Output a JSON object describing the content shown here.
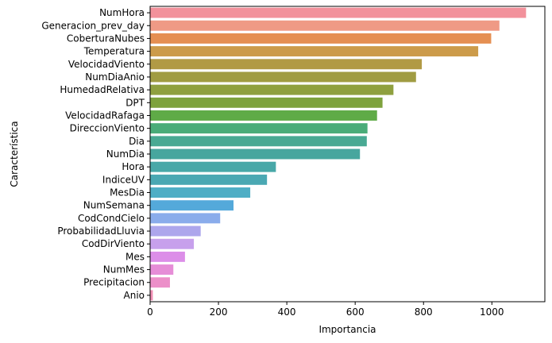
{
  "chart_data": {
    "type": "bar",
    "orientation": "horizontal",
    "xlabel": "Importancia",
    "ylabel": "Característica",
    "xlim": [
      0,
      1155
    ],
    "xticks": [
      0,
      200,
      400,
      600,
      800,
      1000
    ],
    "grid": false,
    "categories": [
      "NumHora",
      "Generacion_prev_day",
      "CoberturaNubes",
      "Temperatura",
      "VelocidadViento",
      "NumDiaAnio",
      "HumedadRelativa",
      "DPT",
      "VelocidadRafaga",
      "DireccionViento",
      "Dia",
      "NumDia",
      "Hora",
      "IndiceUV",
      "MesDia",
      "NumSemana",
      "CodCondCielo",
      "ProbabilidadLluvia",
      "CodDirViento",
      "Mes",
      "NumMes",
      "Precipitacion",
      "Anio"
    ],
    "values": [
      1100,
      1022,
      998,
      960,
      795,
      778,
      712,
      680,
      664,
      636,
      634,
      614,
      368,
      342,
      293,
      244,
      205,
      148,
      128,
      102,
      68,
      58,
      8
    ],
    "colors": [
      "#f2919b",
      "#ef9a85",
      "#e58f52",
      "#cc9b4a",
      "#b19a45",
      "#a09c42",
      "#8fa03f",
      "#7ea23d",
      "#5fab47",
      "#4aac79",
      "#49a993",
      "#47a69e",
      "#48a8a8",
      "#4aa8b3",
      "#4faec5",
      "#54a9da",
      "#8aaceb",
      "#ada6ec",
      "#c7a0ec",
      "#dc8ee8",
      "#e68dd7",
      "#ec8fc9",
      "#f08fb5"
    ]
  }
}
